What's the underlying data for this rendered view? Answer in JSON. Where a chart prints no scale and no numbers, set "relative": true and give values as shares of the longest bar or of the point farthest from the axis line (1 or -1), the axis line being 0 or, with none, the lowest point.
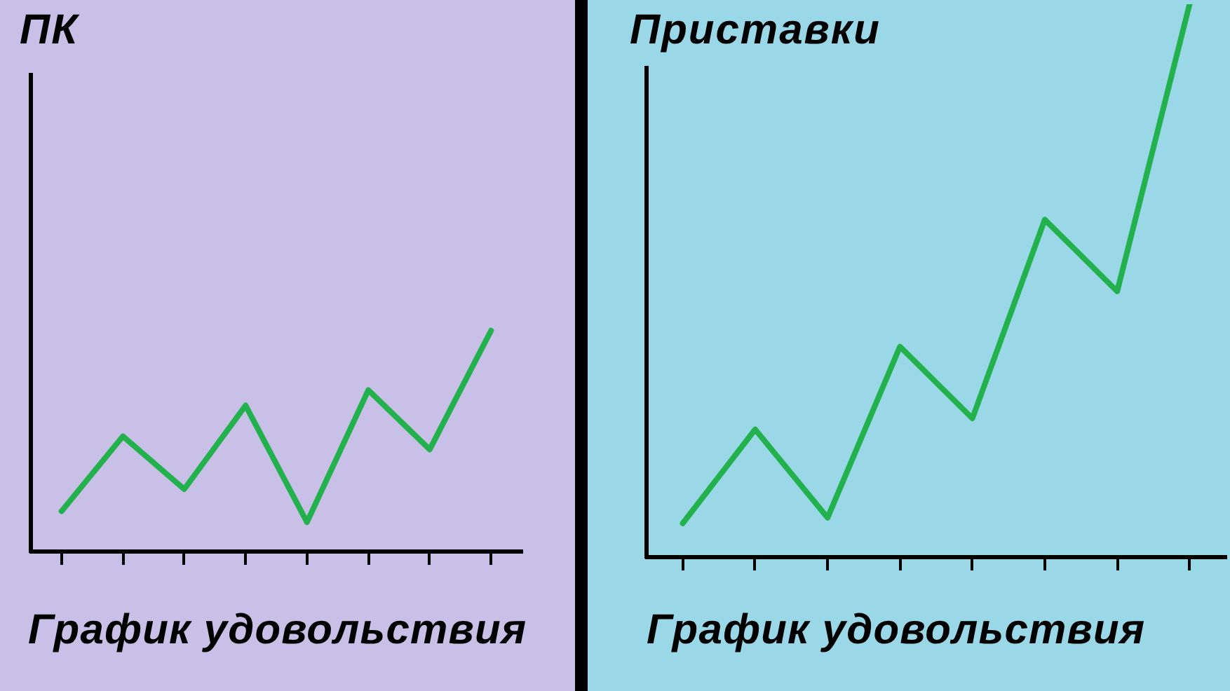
{
  "chart_data": [
    {
      "type": "line",
      "title": "ПК",
      "annotations": [
        "График удовольствия"
      ],
      "categories": [
        null,
        null,
        null,
        null,
        null,
        null,
        null,
        null
      ],
      "values": [
        0.18,
        0.52,
        0.28,
        0.66,
        0.13,
        0.73,
        0.46,
        1
      ],
      "color": "#22b14c",
      "relative": true,
      "legend": false,
      "marker": "none",
      "line_style": "solid"
    },
    {
      "type": "line",
      "title": "Приставки",
      "annotations": [
        "График удовольствия"
      ],
      "categories": [
        null,
        null,
        null,
        null,
        null,
        null,
        null,
        null
      ],
      "values": [
        0.06,
        0.23,
        0.07,
        0.38,
        0.25,
        0.61,
        0.48,
        1
      ],
      "color": "#22b14c",
      "relative": true,
      "legend": false,
      "marker": "none",
      "line_style": "solid"
    }
  ]
}
